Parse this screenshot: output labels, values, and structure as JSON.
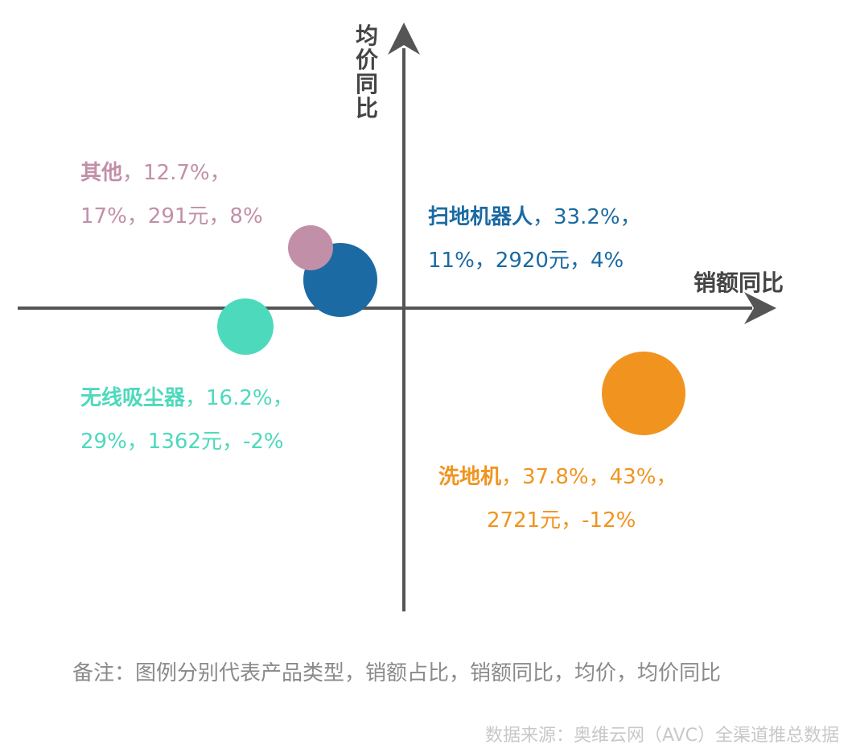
{
  "chart_data": {
    "type": "scatter",
    "xlabel": "销额同比",
    "ylabel": "均价同比",
    "series": [
      {
        "name": "扫地机器人",
        "share": "33.2%",
        "x": 11,
        "x_label": "11%",
        "price": "2920元",
        "y": 4,
        "y_label": "4%",
        "color": "#1b6aa3"
      },
      {
        "name": "洗地机",
        "share": "37.8%",
        "x": 43,
        "x_label": "43%",
        "price": "2721元",
        "y": -12,
        "y_label": "-12%",
        "color": "#f0941f"
      },
      {
        "name": "无线吸尘器",
        "share": "16.2%",
        "x": 29,
        "x_label": "29%",
        "price": "1362元",
        "y": -2,
        "y_label": "-2%",
        "color": "#4dd9bc"
      },
      {
        "name": "其他",
        "share": "12.7%",
        "x": 17,
        "x_label": "17%",
        "price": "291元",
        "y": 8,
        "y_label": "8%",
        "color": "#c28fa8"
      }
    ]
  },
  "labels": {
    "s0": {
      "name": "扫地机器人",
      "line1_rest": "，33.2%，",
      "line2": "11%，2920元，4%"
    },
    "s1": {
      "name": "洗地机",
      "line1_rest": "，37.8%，43%，",
      "line2": "2721元，-12%"
    },
    "s2": {
      "name": "无线吸尘器",
      "line1_rest": "，16.2%，",
      "line2": "29%，1362元，-2%"
    },
    "s3": {
      "name": "其他",
      "line1_rest": "，12.7%，",
      "line2": "17%，291元，8%"
    }
  },
  "note": "备注：图例分别代表产品类型，销额占比，销额同比，均价，均价同比",
  "source": "数据来源：奥维云网（AVC）全渠道推总数据"
}
